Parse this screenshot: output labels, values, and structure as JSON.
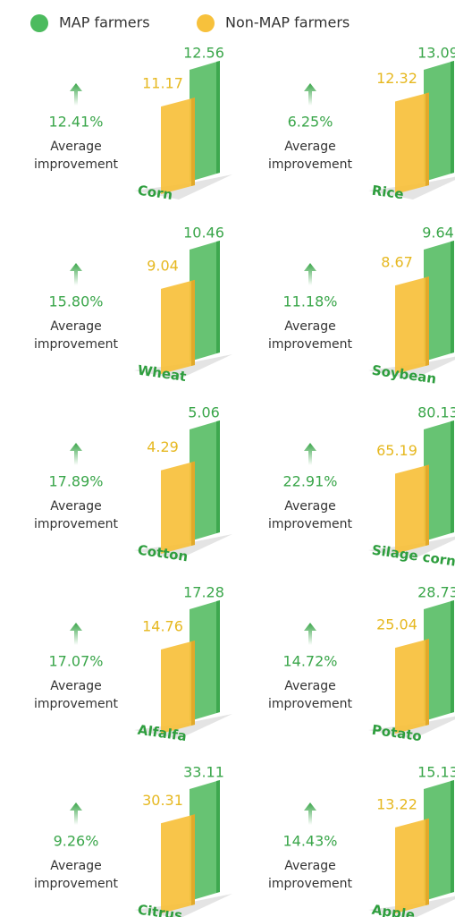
{
  "legend": [
    {
      "name": "MAP farmers",
      "color": "#4cbb5e"
    },
    {
      "name": "Non-MAP farmers",
      "color": "#f7c13c"
    }
  ],
  "panels": [
    {
      "crop": "Corn",
      "map_value": 12.56,
      "non_map_value": 11.17,
      "improvement": 12.41,
      "improvement_label": "12.41%",
      "caption": [
        "Average",
        "improvement"
      ]
    },
    {
      "crop": "Rice",
      "map_value": 13.09,
      "non_map_value": 12.32,
      "improvement": 6.25,
      "improvement_label": "6.25%",
      "caption": [
        "Average",
        "improvement"
      ]
    },
    {
      "crop": "Wheat",
      "map_value": 10.46,
      "non_map_value": 9.04,
      "improvement": 15.8,
      "improvement_label": "15.80%",
      "caption": [
        "Average",
        "improvement"
      ]
    },
    {
      "crop": "Soybean",
      "map_value": 9.64,
      "non_map_value": 8.67,
      "improvement": 11.18,
      "improvement_label": "11.18%",
      "caption": [
        "Average",
        "improvement"
      ]
    },
    {
      "crop": "Cotton",
      "map_value": 5.06,
      "non_map_value": 4.29,
      "improvement": 17.89,
      "improvement_label": "17.89%",
      "caption": [
        "Average",
        "improvement"
      ]
    },
    {
      "crop": "Silage corn",
      "map_value": 80.13,
      "non_map_value": 65.19,
      "improvement": 22.91,
      "improvement_label": "22.91%",
      "caption": [
        "Average",
        "improvement"
      ]
    },
    {
      "crop": "Alfalfa",
      "map_value": 17.28,
      "non_map_value": 14.76,
      "improvement": 17.07,
      "improvement_label": "17.07%",
      "caption": [
        "Average",
        "improvement"
      ]
    },
    {
      "crop": "Potato",
      "map_value": 28.73,
      "non_map_value": 25.04,
      "improvement": 14.72,
      "improvement_label": "14.72%",
      "caption": [
        "Average",
        "improvement"
      ]
    },
    {
      "crop": "Citrus",
      "map_value": 33.11,
      "non_map_value": 30.31,
      "improvement": 9.26,
      "improvement_label": "9.26%",
      "caption": [
        "Average",
        "improvement"
      ]
    },
    {
      "crop": "Apple",
      "map_value": 15.13,
      "non_map_value": 13.22,
      "improvement": 14.43,
      "improvement_label": "14.43%",
      "caption": [
        "Average",
        "improvement"
      ]
    }
  ]
}
